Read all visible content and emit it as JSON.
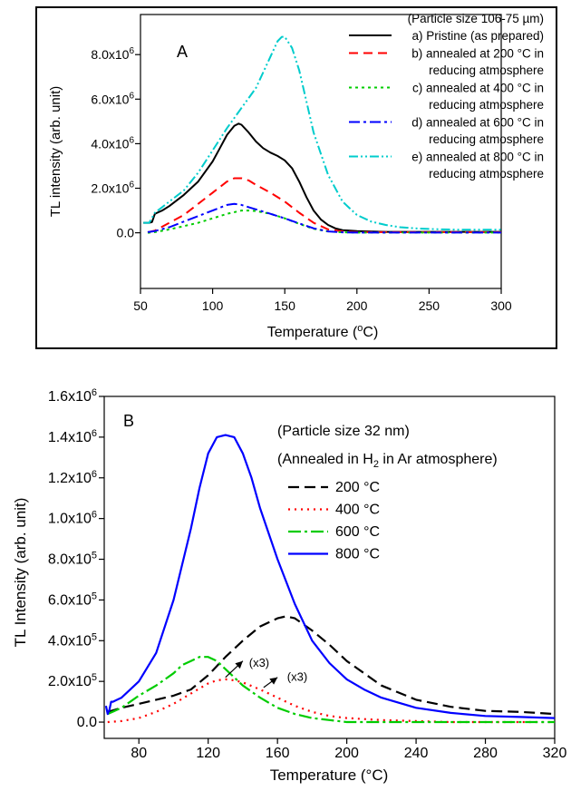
{
  "chart_data": [
    {
      "type": "line",
      "panel_label": "A",
      "xlabel_main": "Temperature (",
      "xlabel_sup": "o",
      "xlabel_tail": "C)",
      "ylabel": "TL intensity (arb. unit)",
      "xlim": [
        50,
        300
      ],
      "ylim": [
        -2500000,
        9800000
      ],
      "xticks": [
        50,
        100,
        150,
        200,
        250,
        300
      ],
      "yticks": [
        {
          "value": 0,
          "label": "0.0",
          "exp": ""
        },
        {
          "value": 2000000,
          "label": "2.0x10",
          "exp": "6"
        },
        {
          "value": 4000000,
          "label": "4.0x10",
          "exp": "6"
        },
        {
          "value": 6000000,
          "label": "6.0x10",
          "exp": "6"
        },
        {
          "value": 8000000,
          "label": "8.0x10",
          "exp": "6"
        }
      ],
      "legend_title": "(Particle size 106-75 µm)",
      "legend_position": "top-right",
      "series": [
        {
          "legend": [
            "a) Pristine (as prepared)"
          ],
          "color": "#000000",
          "dash": "solid",
          "x": [
            52,
            56,
            58,
            60,
            65,
            70,
            80,
            90,
            100,
            105,
            110,
            115,
            118,
            120,
            125,
            130,
            135,
            140,
            145,
            150,
            155,
            160,
            165,
            170,
            175,
            180,
            185,
            190,
            200,
            220,
            250,
            300
          ],
          "y": [
            450000,
            450000,
            480000,
            850000,
            1000000,
            1200000,
            1700000,
            2300000,
            3200000,
            3800000,
            4400000,
            4800000,
            4900000,
            4850000,
            4500000,
            4100000,
            3800000,
            3600000,
            3450000,
            3250000,
            2900000,
            2300000,
            1600000,
            1000000,
            600000,
            350000,
            200000,
            120000,
            80000,
            40000,
            40000,
            40000
          ]
        },
        {
          "legend": [
            "b) annealed at 200 °C in",
            "reducing atmosphere"
          ],
          "color": "#ff0000",
          "dash": "10,6",
          "x": [
            55,
            60,
            70,
            80,
            90,
            100,
            110,
            115,
            120,
            125,
            130,
            140,
            150,
            160,
            170,
            180,
            190,
            200,
            300
          ],
          "y": [
            20000,
            100000,
            450000,
            800000,
            1300000,
            1800000,
            2300000,
            2450000,
            2450000,
            2350000,
            2150000,
            1800000,
            1400000,
            900000,
            450000,
            150000,
            60000,
            30000,
            30000
          ]
        },
        {
          "legend": [
            "c) annealed at 400 °C in",
            "reducing atmosphere"
          ],
          "color": "#00cc00",
          "dash": "3,4",
          "x": [
            55,
            60,
            70,
            80,
            90,
            100,
            110,
            120,
            125,
            130,
            140,
            150,
            160,
            170,
            180,
            190,
            200,
            300
          ],
          "y": [
            0,
            30000,
            150000,
            300000,
            450000,
            650000,
            850000,
            1000000,
            1000000,
            980000,
            850000,
            650000,
            400000,
            180000,
            60000,
            20000,
            10000,
            10000
          ]
        },
        {
          "legend": [
            "d) annealed at 600 °C in",
            "reducing atmosphere"
          ],
          "color": "#0000ff",
          "dash": "12,4,3,4",
          "x": [
            55,
            60,
            70,
            80,
            90,
            100,
            110,
            115,
            120,
            125,
            130,
            140,
            150,
            160,
            170,
            180,
            190,
            200,
            300
          ],
          "y": [
            30000,
            80000,
            250000,
            500000,
            750000,
            1000000,
            1250000,
            1300000,
            1250000,
            1150000,
            1050000,
            850000,
            650000,
            420000,
            200000,
            60000,
            20000,
            10000,
            10000
          ]
        },
        {
          "legend": [
            "e) annealed at 800 °C in",
            "reducing atmosphere"
          ],
          "color": "#00cccc",
          "dash": "10,3,2,3,2,3",
          "x": [
            52,
            56,
            60,
            65,
            70,
            80,
            90,
            100,
            110,
            120,
            130,
            140,
            145,
            148,
            150,
            155,
            160,
            165,
            170,
            180,
            190,
            200,
            210,
            220,
            230,
            240,
            250,
            260,
            270,
            280,
            290,
            300
          ],
          "y": [
            450000,
            450000,
            900000,
            1150000,
            1400000,
            1900000,
            2700000,
            3700000,
            4700000,
            5600000,
            6500000,
            7900000,
            8600000,
            8800000,
            8800000,
            8300000,
            7300000,
            5900000,
            4500000,
            2600000,
            1400000,
            800000,
            500000,
            350000,
            250000,
            200000,
            170000,
            150000,
            140000,
            140000,
            140000,
            140000
          ]
        }
      ]
    },
    {
      "type": "line",
      "panel_label": "B",
      "xlabel": "Temperature (°C)",
      "ylabel": "TL Intensity (arb. unit)",
      "xlim": [
        60,
        320
      ],
      "ylim": [
        -80000,
        1600000
      ],
      "xticks": [
        80,
        120,
        160,
        200,
        240,
        280,
        320
      ],
      "yticks": [
        {
          "value": 0,
          "label": "0.0",
          "exp": ""
        },
        {
          "value": 200000,
          "label": "2.0x10",
          "exp": "5"
        },
        {
          "value": 400000,
          "label": "4.0x10",
          "exp": "5"
        },
        {
          "value": 600000,
          "label": "6.0x10",
          "exp": "5"
        },
        {
          "value": 800000,
          "label": "8.0x10",
          "exp": "5"
        },
        {
          "value": 1000000,
          "label": "1.0x10",
          "exp": "6"
        },
        {
          "value": 1200000,
          "label": "1.2x10",
          "exp": "6"
        },
        {
          "value": 1400000,
          "label": "1.4x10",
          "exp": "6"
        },
        {
          "value": 1600000,
          "label": "1.6x10",
          "exp": "6"
        }
      ],
      "legend_title": "(Particle size 32 nm)",
      "legend_subtitle_pre": "(Annealed in H",
      "legend_subtitle_sub": "2",
      "legend_subtitle_post": " in Ar atmosphere)",
      "legend_position": "top-right",
      "annotations": [
        {
          "text": "(x3)",
          "x": 142,
          "y": 290000,
          "arrow_from": [
            130,
            220000
          ],
          "arrow_to": [
            140,
            300000
          ]
        },
        {
          "text": "(x3)",
          "x": 164,
          "y": 220000,
          "arrow_from": [
            152,
            170000
          ],
          "arrow_to": [
            160,
            220000
          ]
        }
      ],
      "series": [
        {
          "name": "200 °C",
          "color": "#000000",
          "dash": "12,6",
          "x": [
            62,
            70,
            80,
            90,
            100,
            110,
            120,
            130,
            140,
            150,
            160,
            165,
            170,
            180,
            190,
            200,
            220,
            240,
            260,
            280,
            300,
            320
          ],
          "y": [
            50000,
            70000,
            90000,
            110000,
            130000,
            160000,
            230000,
            320000,
            400000,
            470000,
            510000,
            520000,
            510000,
            450000,
            380000,
            300000,
            180000,
            110000,
            75000,
            55000,
            50000,
            40000
          ]
        },
        {
          "name": "400 °C",
          "color": "#ff0000",
          "dash": "2,5",
          "x": [
            62,
            70,
            80,
            90,
            100,
            110,
            120,
            125,
            130,
            135,
            140,
            150,
            160,
            170,
            180,
            190,
            200,
            220,
            240,
            260,
            280,
            300,
            320
          ],
          "y": [
            0,
            5000,
            20000,
            50000,
            90000,
            140000,
            190000,
            205000,
            210000,
            205000,
            195000,
            160000,
            120000,
            80000,
            50000,
            30000,
            20000,
            10000,
            5000,
            0,
            0,
            0,
            0
          ]
        },
        {
          "name": "600 °C",
          "color": "#00cc00",
          "dash": "14,4,3,4",
          "x": [
            62,
            70,
            80,
            90,
            100,
            105,
            110,
            115,
            120,
            125,
            130,
            140,
            150,
            160,
            170,
            180,
            190,
            200,
            220,
            240,
            280,
            320
          ],
          "y": [
            40000,
            70000,
            130000,
            180000,
            240000,
            280000,
            300000,
            320000,
            320000,
            300000,
            260000,
            180000,
            120000,
            70000,
            40000,
            20000,
            10000,
            0,
            0,
            0,
            0,
            0
          ]
        },
        {
          "name": "800 °C",
          "color": "#0000ff",
          "dash": "solid",
          "x": [
            61,
            62,
            63,
            64,
            65,
            70,
            80,
            90,
            100,
            110,
            115,
            120,
            125,
            130,
            135,
            140,
            145,
            150,
            160,
            170,
            180,
            190,
            200,
            210,
            220,
            240,
            260,
            280,
            300,
            320
          ],
          "y": [
            80000,
            40000,
            60000,
            100000,
            100000,
            120000,
            200000,
            340000,
            600000,
            950000,
            1150000,
            1320000,
            1400000,
            1410000,
            1400000,
            1320000,
            1200000,
            1050000,
            800000,
            580000,
            400000,
            290000,
            210000,
            160000,
            120000,
            70000,
            45000,
            30000,
            25000,
            20000
          ]
        }
      ]
    }
  ]
}
